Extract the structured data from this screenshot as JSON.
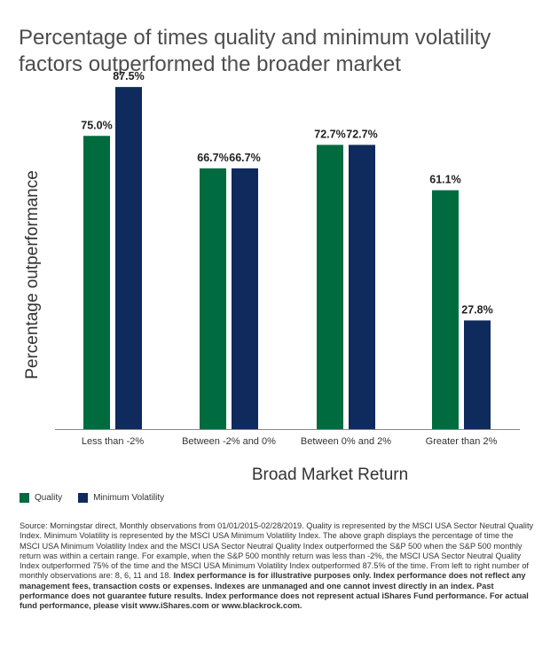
{
  "title": "Percentage of times quality and minimum volatility factors outperformed the broader market",
  "colors": {
    "quality": "#006b3f",
    "minimum_volatility": "#0f2a5c"
  },
  "chart_data": {
    "type": "bar",
    "title": "Percentage of times quality and minimum volatility factors outperformed the broader market",
    "xlabel": "Broad Market Return",
    "ylabel": "Percentage outperformance",
    "categories": [
      "Less than -2%",
      "Between -2% and 0%",
      "Between 0% and 2%",
      "Greater than 2%"
    ],
    "series": [
      {
        "name": "Quality",
        "values": [
          75.0,
          66.7,
          72.7,
          61.1
        ],
        "labels": [
          "75.0%",
          "66.7%",
          "72.7%",
          "61.1%"
        ]
      },
      {
        "name": "Minimum Volatility",
        "values": [
          87.5,
          66.7,
          72.7,
          27.8
        ],
        "labels": [
          "87.5%",
          "66.7%",
          "72.7%",
          "27.8%"
        ]
      }
    ],
    "ylim": [
      0,
      100
    ],
    "grid": false,
    "legend": "bottom-left"
  },
  "legend": {
    "quality": "Quality",
    "minimum_volatility": "Minimum Volatility"
  },
  "footnote": {
    "regular": "Source: Morningstar direct, Monthly observations from 01/01/2015-02/28/2019. Quality is represented by the MSCI USA Sector Neutral Quality Index. Minimum Volatility is represented by the MSCI USA Minimum Volatility Index. The above graph displays the percentage of time the MSCI USA Minimum Volatility Index and the MSCI USA Sector Neutral Quality Index outperformed the S&P 500 when the S&P 500 monthly return was within a certain range. For example, when the S&P 500 monthly return was less than -2%, the MSCI USA Sector Neutral Quality Index outperformed 75% of the time and the MSCI USA Minimum Volatility Index outperformed 87.5% of the time. From left to right number of monthly observations are: 8, 6, 11 and 18.",
    "bold": "Index performance is for illustrative purposes only.  Index performance does not reflect any management fees, transaction costs or expenses. Indexes are unmanaged and one cannot invest directly in an index. Past performance does not guarantee future results. Index performance does not represent actual iShares Fund performance. For actual fund performance, please visit www.iShares.com or www.blackrock.com."
  }
}
